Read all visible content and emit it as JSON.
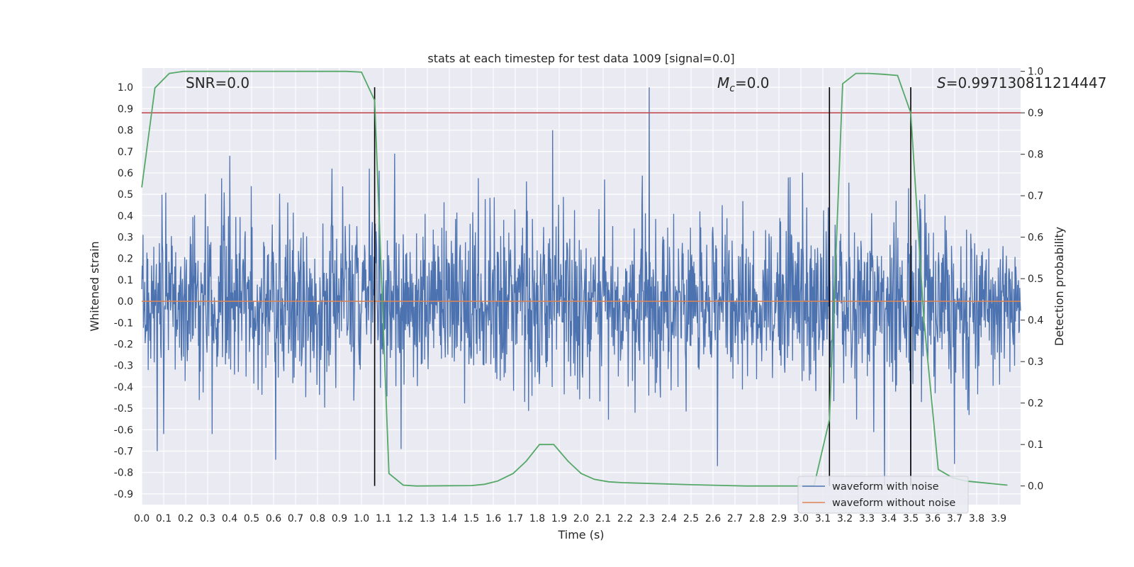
{
  "chart_data": {
    "type": "line",
    "title": "stats at each timestep for test data 1009 [signal=0.0]",
    "xlabel": "Time (s)",
    "ylabel": "Whitened strain",
    "y2label": "Detection probability",
    "xlim": [
      0.0,
      4.0
    ],
    "ylim": [
      -0.95,
      1.09
    ],
    "y2lim": [
      -0.045,
      1.008
    ],
    "x_ticks": [
      "0.0",
      "0.1",
      "0.2",
      "0.3",
      "0.4",
      "0.5",
      "0.6",
      "0.7",
      "0.8",
      "0.9",
      "1.0",
      "1.1",
      "1.2",
      "1.3",
      "1.4",
      "1.5",
      "1.6",
      "1.7",
      "1.8",
      "1.9",
      "2.0",
      "2.1",
      "2.2",
      "2.3",
      "2.4",
      "2.5",
      "2.6",
      "2.7",
      "2.8",
      "2.9",
      "3.0",
      "3.1",
      "3.2",
      "3.3",
      "3.4",
      "3.5",
      "3.6",
      "3.7",
      "3.8",
      "3.9"
    ],
    "y_ticks": [
      "1.0",
      "0.9",
      "0.8",
      "0.7",
      "0.6",
      "0.5",
      "0.4",
      "0.3",
      "0.2",
      "0.1",
      "0.0",
      "-0.1",
      "-0.2",
      "-0.3",
      "-0.4",
      "-0.5",
      "-0.6",
      "-0.7",
      "-0.8",
      "-0.9"
    ],
    "y2_ticks": [
      "1.0",
      "0.9",
      "0.8",
      "0.7",
      "0.6",
      "0.5",
      "0.4",
      "0.3",
      "0.2",
      "0.1",
      "0.0"
    ],
    "annotations": {
      "snr": "SNR=0.0",
      "mc_symbol": "M",
      "mc_sub": "c",
      "mc_value": "=0.0",
      "s_symbol": "S",
      "s_value": "=0.997130811214447"
    },
    "legend": {
      "position": "lower right",
      "entries": [
        "waveform with noise",
        "waveform without noise"
      ]
    },
    "colors": {
      "waveform_with_noise": "#4c72b0",
      "waveform_without_noise": "#dd8452",
      "detection_probability": "#55a868",
      "threshold": "#c44e52",
      "vertical_markers": "#000000",
      "axes_background": "#eaeaf2",
      "grid": "#ffffff"
    },
    "threshold_y2": 0.9,
    "vertical_markers_x": [
      1.06,
      3.13,
      3.5
    ],
    "waveform_without_noise_y": 0.0,
    "noise_waveform": {
      "description_fields_only": true,
      "n_samples": 2048,
      "typical_amplitude": 0.25,
      "peaks": [
        [
          0.07,
          -0.7
        ],
        [
          0.32,
          -0.62
        ],
        [
          0.4,
          0.68
        ],
        [
          0.61,
          -0.74
        ],
        [
          1.08,
          0.61
        ],
        [
          1.15,
          0.69
        ],
        [
          1.18,
          -0.69
        ],
        [
          1.87,
          0.8
        ],
        [
          1.75,
          0.56
        ],
        [
          2.31,
          1.0
        ],
        [
          2.62,
          -0.77
        ],
        [
          2.95,
          0.58
        ],
        [
          3.38,
          -0.86
        ],
        [
          3.5,
          -0.85
        ],
        [
          3.7,
          -0.76
        ]
      ]
    },
    "series": [
      {
        "name": "detection probability",
        "axis": "y2",
        "x": [
          0.0,
          0.06,
          0.125,
          0.19,
          0.25,
          0.5,
          0.75,
          0.93,
          1.0,
          1.06,
          1.125,
          1.19,
          1.25,
          1.5,
          1.56,
          1.62,
          1.69,
          1.75,
          1.81,
          1.875,
          1.94,
          2.0,
          2.06,
          2.125,
          2.19,
          2.5,
          2.75,
          3.0,
          3.06,
          3.13,
          3.19,
          3.25,
          3.31,
          3.375,
          3.44,
          3.5,
          3.56,
          3.625,
          3.69,
          3.75,
          3.94
        ],
        "y": [
          0.72,
          0.96,
          0.995,
          1.0,
          1.0,
          1.0,
          1.0,
          1.0,
          0.998,
          0.93,
          0.03,
          0.002,
          0.0,
          0.001,
          0.004,
          0.012,
          0.03,
          0.06,
          0.1,
          0.1,
          0.06,
          0.03,
          0.016,
          0.01,
          0.008,
          0.003,
          0.0,
          0.0,
          0.001,
          0.16,
          0.97,
          0.995,
          0.995,
          0.993,
          0.99,
          0.9,
          0.4,
          0.04,
          0.02,
          0.012,
          0.002
        ]
      }
    ]
  }
}
